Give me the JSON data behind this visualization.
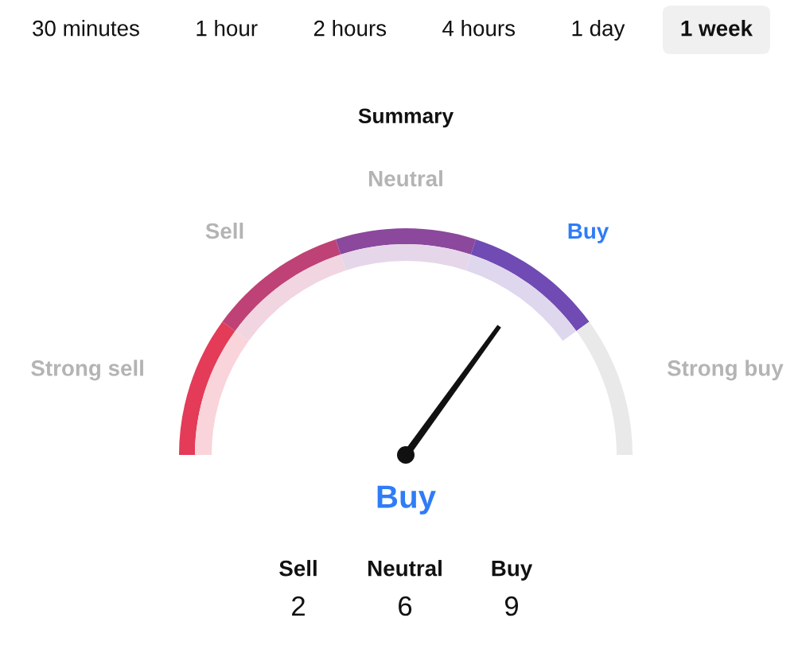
{
  "chart_data": [
    {
      "type": "other",
      "categories": [
        "30 minutes",
        "1 hour",
        "2 hours",
        "4 hours",
        "1 day",
        "1 week"
      ],
      "colors": [
        null,
        null,
        null,
        null,
        null,
        "#f0f0f0"
      ]
    },
    {
      "type": "donut",
      "title": "Summary",
      "categories": [
        "Strong sell",
        "Sell",
        "Neutral",
        "Buy",
        "Strong buy"
      ],
      "values": [
        20,
        20,
        20,
        20,
        20
      ],
      "colors": [
        "#e33b58",
        "#bf4276",
        "#8b489c",
        "#6f4bb3",
        "#e9e9e9"
      ],
      "needle": "Buy",
      "annotations": [
        "Buy"
      ]
    },
    {
      "type": "other",
      "categories": [
        "Sell",
        "Neutral",
        "Buy"
      ],
      "values": [
        2,
        6,
        9
      ],
      "data_labels": true
    }
  ]
}
